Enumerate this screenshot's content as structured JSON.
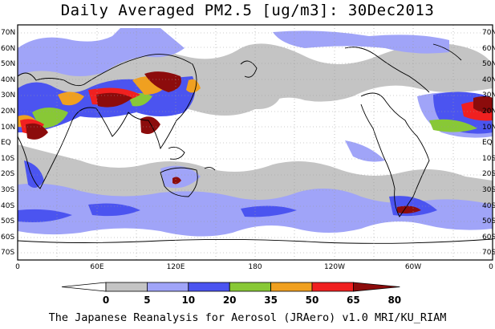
{
  "title": "Daily Averaged PM2.5 [ug/m3]: 30Dec2013",
  "footer": "The Japanese Reanalysis for Aerosol (JRAero) v1.0 MRI/KU_RIAM",
  "lat_labels": [
    "70N",
    "60N",
    "50N",
    "40N",
    "30N",
    "20N",
    "10N",
    "EQ",
    "10S",
    "20S",
    "30S",
    "40S",
    "50S",
    "60S",
    "70S"
  ],
  "lon_labels": [
    "0",
    "60E",
    "120E",
    "180",
    "120W",
    "60W",
    "0"
  ],
  "colorbar": {
    "levels": [
      "0",
      "5",
      "10",
      "20",
      "35",
      "50",
      "65",
      "80"
    ],
    "colors": [
      "#ffffff",
      "#c4c4c4",
      "#a0a4f8",
      "#4b54f0",
      "#88c836",
      "#f0a020",
      "#f02020",
      "#8c0c0c"
    ]
  }
}
